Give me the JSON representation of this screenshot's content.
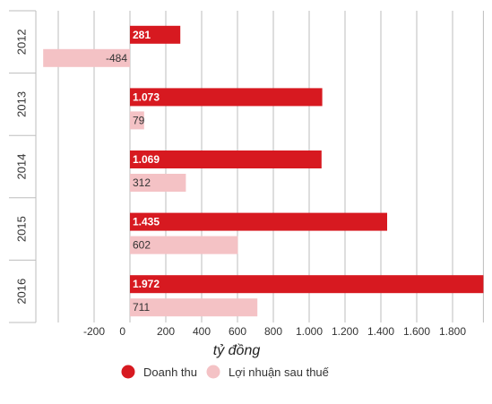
{
  "chart_data": {
    "type": "bar",
    "orientation": "horizontal",
    "categories": [
      "2012",
      "2013",
      "2014",
      "2015",
      "2016"
    ],
    "series": [
      {
        "name": "Doanh thu",
        "color": "#d71920",
        "values": [
          281,
          1073,
          1069,
          1435,
          1972
        ],
        "labels": [
          "281",
          "1.073",
          "1.069",
          "1.435",
          "1.972"
        ]
      },
      {
        "name": "Lợi nhuận sau thuế",
        "color": "#f4c2c5",
        "values": [
          -484,
          79,
          312,
          602,
          711
        ],
        "labels": [
          "-484",
          "79",
          "312",
          "602",
          "711"
        ]
      }
    ],
    "xlabel": "tỷ đồng",
    "xticks": [
      -200,
      0,
      200,
      400,
      600,
      800,
      1000,
      1200,
      1400,
      1600,
      1800
    ],
    "xtick_labels": [
      "-200",
      "0",
      "200",
      "400",
      "600",
      "800",
      "1.000",
      "1.200",
      "1.400",
      "1.600",
      "1.800"
    ],
    "xlim": [
      -484,
      1972
    ],
    "grid": true,
    "legend": "bottom"
  }
}
